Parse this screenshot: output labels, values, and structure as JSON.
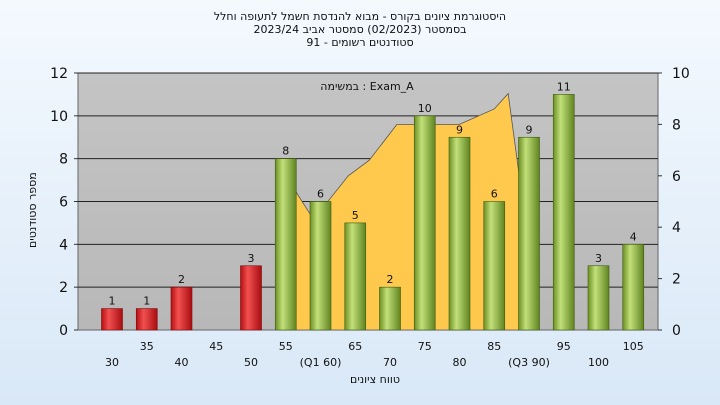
{
  "header": {
    "title_line1": "היסטוגרמת ציונים בקורס - מבוא להנדסת חשמל לתעופה וחלל",
    "title_line2": "בסמסטר  (02/2023)  סמסטר אביב 2023/24",
    "title_line3": "סטודנטים רשומים - 91"
  },
  "chart_data": {
    "type": "bar",
    "title": "היסטוגרמת ציונים בקורס - מבוא להנדסת חשמל לתעופה וחלל",
    "ylabel": "מספר סטודנטים",
    "xlabel": "טווח ציונים",
    "ylim": [
      0,
      12
    ],
    "y2lim": [
      0,
      10
    ],
    "yticks": [
      0,
      2,
      4,
      6,
      8,
      10,
      12
    ],
    "y2ticks": [
      0,
      2,
      4,
      6,
      8,
      10
    ],
    "annotation": "במשימה : Exam_A",
    "xtick_labels": [
      {
        "pos": 30,
        "label": "30"
      },
      {
        "pos": 35,
        "label": "35"
      },
      {
        "pos": 40,
        "label": "40"
      },
      {
        "pos": 45,
        "label": "45"
      },
      {
        "pos": 50,
        "label": "50"
      },
      {
        "pos": 55,
        "label": "55"
      },
      {
        "pos": 60,
        "label": "(Q1 60)"
      },
      {
        "pos": 65,
        "label": "65"
      },
      {
        "pos": 70,
        "label": "70"
      },
      {
        "pos": 75,
        "label": "75"
      },
      {
        "pos": 80,
        "label": "80"
      },
      {
        "pos": 85,
        "label": "85"
      },
      {
        "pos": 90,
        "label": "(Q3 90)"
      },
      {
        "pos": 95,
        "label": "95"
      },
      {
        "pos": 100,
        "label": "100"
      },
      {
        "pos": 105,
        "label": "105"
      }
    ],
    "bars": [
      {
        "x": 35,
        "value": 1,
        "color": "red"
      },
      {
        "x": 40,
        "value": 1,
        "color": "red"
      },
      {
        "x": 45,
        "value": 2,
        "color": "red"
      },
      {
        "x": 55,
        "value": 3,
        "color": "red"
      },
      {
        "x": 60,
        "value": 8,
        "color": "green"
      },
      {
        "x": 65,
        "value": 6,
        "color": "green"
      },
      {
        "x": 70,
        "value": 5,
        "color": "green"
      },
      {
        "x": 75,
        "value": 2,
        "color": "green"
      },
      {
        "x": 80,
        "value": 10,
        "color": "green"
      },
      {
        "x": 85,
        "value": 9,
        "color": "green"
      },
      {
        "x": 90,
        "value": 6,
        "color": "green"
      },
      {
        "x": 95,
        "value": 9,
        "color": "green"
      },
      {
        "x": 100,
        "value": 11,
        "color": "green"
      },
      {
        "x": 105,
        "value": 3,
        "color": "green"
      },
      {
        "x": 110,
        "value": 4,
        "color": "green"
      }
    ],
    "area_series": {
      "axis": "right",
      "color": "#ffc94d",
      "points": [
        [
          60,
          6
        ],
        [
          64,
          4.3
        ],
        [
          69,
          6
        ],
        [
          72,
          6.6
        ],
        [
          76,
          8
        ],
        [
          85,
          8
        ],
        [
          90,
          8.6
        ],
        [
          92,
          9.2
        ],
        [
          95,
          3.2
        ]
      ]
    }
  }
}
